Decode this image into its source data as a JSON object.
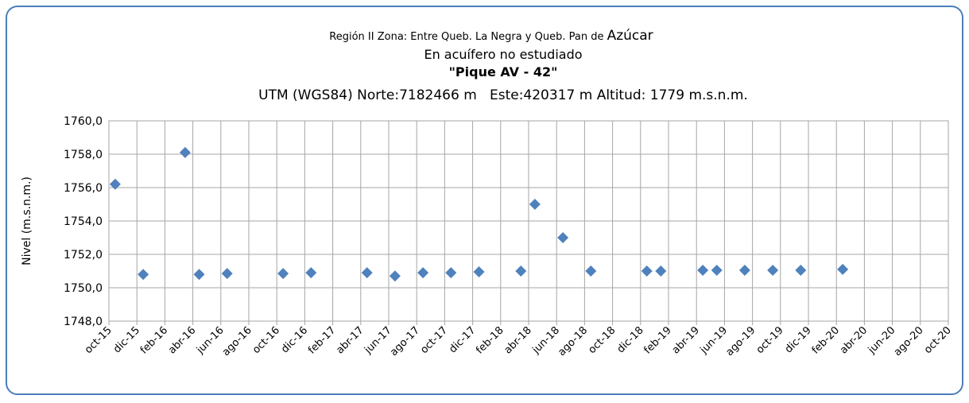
{
  "chart_data": {
    "type": "scatter",
    "title": "Región II  Zona: Entre Queb. La Negra y Queb. Pan de",
    "title_emphasis": "Azúcar",
    "subtitle": "En acuífero no estudiado",
    "well_name": "\"Pique AV - 42\"",
    "location": "UTM (WGS84) Norte:7182466 m   Este:420317 m Altitud: 1779 m.s.n.m.",
    "y_label": "Nivel (m.s.n.m.)",
    "categories": [
      "oct-15",
      "dic-15",
      "feb-16",
      "abr-16",
      "jun-16",
      "ago-16",
      "oct-16",
      "dic-16",
      "feb-17",
      "abr-17",
      "jun-17",
      "ago-17",
      "oct-17",
      "dic-17",
      "feb-18",
      "abr-18",
      "jun-18",
      "ago-18",
      "oct-18",
      "dic-18",
      "feb-19",
      "abr-19",
      "jun-19",
      "ago-19",
      "oct-19",
      "dic-19",
      "feb-20",
      "abr-20",
      "jun-20",
      "ago-20",
      "oct-20"
    ],
    "xlim": [
      "2015-10",
      "2020-10"
    ],
    "series": [
      {
        "name": "Nivel",
        "color": "#4f81bd",
        "x": [
          "2015-10",
          "2015-12",
          "2016-03",
          "2016-04",
          "2016-06",
          "2016-10",
          "2016-12",
          "2017-04",
          "2017-06",
          "2017-08",
          "2017-10",
          "2017-12",
          "2018-03",
          "2018-04",
          "2018-06",
          "2018-08",
          "2018-12",
          "2019-01",
          "2019-04",
          "2019-05",
          "2019-07",
          "2019-09",
          "2019-11",
          "2020-02"
        ],
        "values": [
          1756.2,
          1750.8,
          1758.1,
          1750.8,
          1750.85,
          1750.85,
          1750.9,
          1750.9,
          1750.7,
          1750.9,
          1750.9,
          1750.95,
          1751.0,
          1755.0,
          1753.0,
          1751.0,
          1751.0,
          1751.0,
          1751.05,
          1751.05,
          1751.05,
          1751.05,
          1751.05,
          1751.1
        ]
      }
    ],
    "ylim": [
      1748,
      1760
    ],
    "yticks": [
      {
        "value": 1748,
        "label": "1748,0"
      },
      {
        "value": 1750,
        "label": "1750,0"
      },
      {
        "value": 1752,
        "label": "1752,0"
      },
      {
        "value": 1754,
        "label": "1754,0"
      },
      {
        "value": 1756,
        "label": "1756,0"
      },
      {
        "value": 1758,
        "label": "1758,0"
      },
      {
        "value": 1760,
        "label": "1760,0"
      }
    ],
    "grid": true
  }
}
